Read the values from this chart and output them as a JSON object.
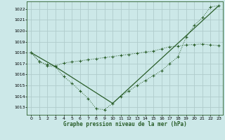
{
  "title": "Graphe pression niveau de la mer (hPa)",
  "bg_color": "#cce8e8",
  "grid_color": "#b0cccc",
  "line_color": "#2a5e2a",
  "xlim": [
    -0.5,
    23.5
  ],
  "ylim": [
    1012.3,
    1022.7
  ],
  "yticks": [
    1013,
    1014,
    1015,
    1016,
    1017,
    1018,
    1019,
    1020,
    1021,
    1022
  ],
  "xticks": [
    0,
    1,
    2,
    3,
    4,
    5,
    6,
    7,
    8,
    9,
    10,
    11,
    12,
    13,
    14,
    15,
    16,
    17,
    18,
    19,
    20,
    21,
    22,
    23
  ],
  "series1_x": [
    0,
    1,
    2,
    3,
    4,
    5,
    6,
    7,
    8,
    9,
    10,
    11,
    12,
    13,
    14,
    15,
    16,
    17,
    18,
    19,
    20,
    21,
    22,
    23
  ],
  "series1_y": [
    1018.0,
    1017.2,
    1016.8,
    1016.7,
    1015.8,
    1015.2,
    1014.5,
    1013.8,
    1012.85,
    1012.78,
    1013.35,
    1014.0,
    1014.5,
    1015.0,
    1015.45,
    1015.9,
    1016.35,
    1017.0,
    1017.6,
    1019.4,
    1020.5,
    1021.2,
    1022.2,
    1022.3
  ],
  "series2_x": [
    0,
    1,
    2,
    3,
    4,
    5,
    6,
    7,
    8,
    9,
    10,
    11,
    12,
    13,
    14,
    15,
    16,
    17,
    18,
    19,
    20,
    21,
    22,
    23
  ],
  "series2_y": [
    1018.0,
    1017.2,
    1016.9,
    1016.8,
    1017.05,
    1017.15,
    1017.25,
    1017.35,
    1017.45,
    1017.55,
    1017.65,
    1017.75,
    1017.85,
    1017.95,
    1018.05,
    1018.15,
    1018.35,
    1018.55,
    1018.6,
    1018.7,
    1018.75,
    1018.8,
    1018.7,
    1018.65
  ],
  "series3_x": [
    0,
    3,
    10,
    23
  ],
  "series3_y": [
    1018.0,
    1016.7,
    1013.35,
    1022.3
  ]
}
